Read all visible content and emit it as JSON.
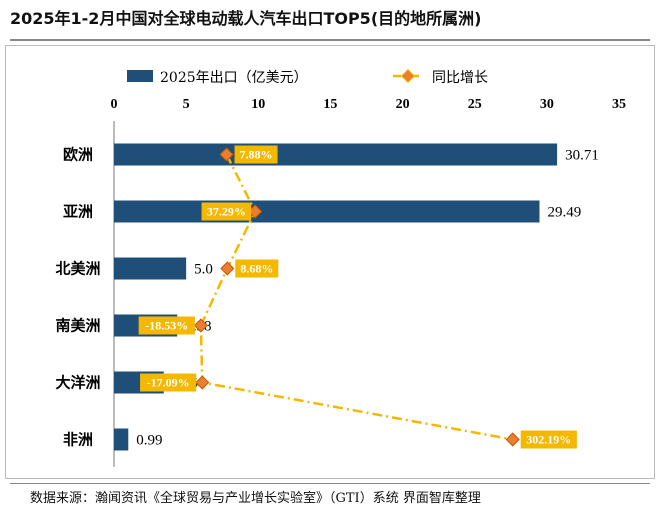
{
  "title": "2025年1-2月中国对全球电动载人汽车出口TOP5(目的地所属洲)",
  "source": "数据来源：瀚闻资讯《全球贸易与产业增长实验室》（GTI）系统     界面智库整理",
  "colors": {
    "bar": "#1f4e79",
    "line": "#f5b800",
    "marker_fill": "#ed7d31",
    "label_bg": "#f5b800"
  },
  "chart_data": {
    "type": "bar",
    "orientation": "horizontal",
    "categories": [
      "欧洲",
      "亚洲",
      "北美洲",
      "南美洲",
      "大洋洲",
      "非洲"
    ],
    "series": [
      {
        "name": "2025年出口（亿美元）",
        "type": "bar",
        "values": [
          30.71,
          29.49,
          5.0,
          4.38,
          3.45,
          0.99
        ],
        "labels": [
          "30.71",
          "29.49",
          "5.0",
          "4.38",
          "3.45",
          "0.99"
        ]
      },
      {
        "name": "同比增长",
        "type": "line",
        "values_pct": [
          7.88,
          37.29,
          8.68,
          -18.53,
          -17.09,
          302.19
        ],
        "labels": [
          "7.88%",
          "37.29%",
          "8.68%",
          "-18.53%",
          "-17.09%",
          "302.19%"
        ]
      }
    ],
    "xlim": [
      0,
      35
    ],
    "xticks": [
      "0",
      "5",
      "10",
      "15",
      "20",
      "25",
      "30",
      "35"
    ],
    "legend_position": "top",
    "grid": false
  }
}
